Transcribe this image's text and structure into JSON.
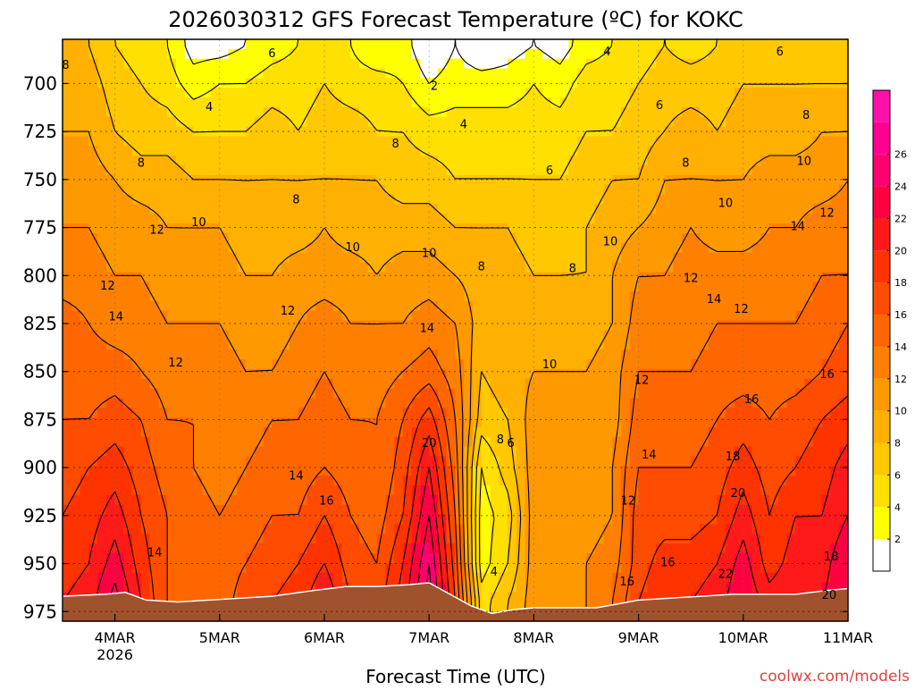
{
  "page": {
    "title": "2026030312 GFS Forecast Temperature (ºC) for KOKC"
  },
  "chart_data": {
    "type": "heatmap",
    "title": "2026030312 GFS Forecast Temperature (ºC) for KOKC",
    "xlabel": "Forecast Time (UTC)",
    "ylabel": "",
    "credit": "coolwx.com/models",
    "x_range": [
      3.5,
      11.0
    ],
    "x_ticks": [
      {
        "x": 4,
        "label": "4MAR",
        "sublabel": "2026"
      },
      {
        "x": 5,
        "label": "5MAR"
      },
      {
        "x": 6,
        "label": "6MAR"
      },
      {
        "x": 7,
        "label": "7MAR"
      },
      {
        "x": 8,
        "label": "8MAR"
      },
      {
        "x": 9,
        "label": "9MAR"
      },
      {
        "x": 10,
        "label": "10MAR"
      },
      {
        "x": 11,
        "label": "11MAR"
      }
    ],
    "y_range": [
      980,
      677
    ],
    "y_ticks": [
      700,
      725,
      750,
      775,
      800,
      825,
      850,
      875,
      900,
      925,
      950,
      975
    ],
    "colorbar": {
      "levels": [
        2,
        4,
        6,
        8,
        10,
        12,
        14,
        16,
        18,
        20,
        22,
        24,
        26
      ],
      "below_color": "#ffffff",
      "colors": [
        "#ffff00",
        "#ffe000",
        "#ffc800",
        "#ffb000",
        "#ff9900",
        "#ff8000",
        "#ff6600",
        "#ff4c00",
        "#ff3300",
        "#ff1a1a",
        "#ff0040",
        "#ff0070",
        "#ff0090",
        "#ff10a8"
      ]
    },
    "terrain_color": "#a0522d",
    "surface_pressure": [
      [
        3.5,
        967
      ],
      [
        3.9,
        966
      ],
      [
        4.1,
        965
      ],
      [
        4.3,
        969
      ],
      [
        4.6,
        970
      ],
      [
        4.9,
        969
      ],
      [
        5.2,
        968
      ],
      [
        5.5,
        967
      ],
      [
        5.9,
        964
      ],
      [
        6.2,
        962
      ],
      [
        6.5,
        962
      ],
      [
        6.8,
        961
      ],
      [
        7.0,
        960
      ],
      [
        7.2,
        966
      ],
      [
        7.4,
        972
      ],
      [
        7.6,
        976
      ],
      [
        7.8,
        974
      ],
      [
        8.0,
        973
      ],
      [
        8.3,
        973
      ],
      [
        8.6,
        973
      ],
      [
        8.8,
        971
      ],
      [
        9.0,
        969
      ],
      [
        9.3,
        968
      ],
      [
        9.6,
        967
      ],
      [
        9.9,
        966
      ],
      [
        10.2,
        966
      ],
      [
        10.5,
        966
      ],
      [
        10.8,
        964
      ],
      [
        11.0,
        963
      ]
    ],
    "temperature_profile": {
      "description": "Temperature (°C) at pressure levels (hPa) for key times",
      "levels_hpa": [
        680,
        700,
        725,
        750,
        775,
        800,
        825,
        850,
        875,
        900,
        925,
        950,
        970
      ],
      "times": [
        3.5,
        3.75,
        4.0,
        4.25,
        4.5,
        4.75,
        5.0,
        5.25,
        5.5,
        5.75,
        6.0,
        6.25,
        6.5,
        6.75,
        7.0,
        7.25,
        7.5,
        7.75,
        8.0,
        8.25,
        8.5,
        8.75,
        9.0,
        9.25,
        9.5,
        9.75,
        10.0,
        10.25,
        10.5,
        10.75,
        11.0
      ],
      "values": [
        [
          8,
          9,
          10,
          11,
          12,
          13,
          15,
          15,
          16,
          17,
          18,
          19,
          20
        ],
        [
          8,
          9,
          10,
          11,
          12,
          13,
          14,
          15,
          16,
          18,
          19,
          20,
          21
        ],
        [
          6,
          7,
          8,
          10,
          11,
          12,
          13,
          15,
          17,
          19,
          21,
          23,
          25
        ],
        [
          5,
          6,
          7,
          9,
          11,
          12,
          13,
          14,
          16,
          17,
          18,
          19,
          20
        ],
        [
          4,
          5,
          7,
          9,
          10,
          11,
          12,
          13,
          14,
          15,
          16,
          16,
          16
        ],
        [
          1,
          3,
          6,
          8,
          10,
          11,
          12,
          13,
          14,
          14,
          15,
          15,
          15
        ],
        [
          1,
          4,
          6,
          8,
          10,
          11,
          12,
          13,
          13,
          13,
          14,
          15,
          15
        ],
        [
          2,
          4,
          6,
          8,
          9,
          10,
          11,
          12,
          13,
          14,
          15,
          16,
          17
        ],
        [
          3,
          5,
          7,
          8,
          9,
          10,
          11,
          12,
          14,
          15,
          16,
          17,
          18
        ],
        [
          4,
          5,
          6,
          8,
          9,
          11,
          12,
          13,
          14,
          15,
          16,
          18,
          19
        ],
        [
          5,
          6,
          7,
          8,
          10,
          11,
          13,
          14,
          15,
          16,
          18,
          20,
          22
        ],
        [
          4,
          5,
          7,
          8,
          9,
          11,
          12,
          13,
          14,
          15,
          16,
          17,
          18
        ],
        [
          2,
          5,
          6,
          8,
          9,
          10,
          12,
          13,
          14,
          14,
          15,
          16,
          17
        ],
        [
          3,
          4,
          6,
          7,
          9,
          11,
          12,
          14,
          16,
          17,
          18,
          20,
          21
        ],
        [
          0,
          2,
          5,
          7,
          9,
          11,
          13,
          15,
          19,
          22,
          24,
          26,
          27
        ],
        [
          2,
          3,
          5,
          6,
          8,
          10,
          12,
          13,
          14,
          15,
          16,
          17,
          18
        ],
        [
          0,
          3,
          5,
          6,
          8,
          9,
          9,
          8,
          7,
          4,
          3,
          3,
          5
        ],
        [
          1,
          3,
          5,
          6,
          8,
          9,
          9,
          9,
          8,
          7,
          5,
          6,
          8
        ],
        [
          2,
          4,
          5,
          6,
          7,
          8,
          9,
          10,
          11,
          11,
          11,
          11,
          11
        ],
        [
          1,
          3,
          5,
          6,
          7,
          8,
          9,
          10,
          11,
          11,
          11,
          11,
          11
        ],
        [
          3,
          5,
          6,
          7,
          8,
          8,
          9,
          10,
          11,
          11,
          11,
          12,
          12
        ],
        [
          4,
          5,
          6,
          8,
          9,
          10,
          10,
          11,
          11,
          12,
          12,
          13,
          14
        ],
        [
          5,
          6,
          7,
          8,
          10,
          12,
          13,
          14,
          15,
          16,
          17,
          17,
          18
        ],
        [
          6,
          7,
          8,
          10,
          11,
          12,
          13,
          14,
          15,
          16,
          17,
          19,
          20
        ],
        [
          5,
          7,
          9,
          10,
          12,
          13,
          13,
          14,
          15,
          16,
          17,
          19,
          20
        ],
        [
          6,
          7,
          8,
          10,
          11,
          13,
          14,
          15,
          16,
          17,
          18,
          20,
          21
        ],
        [
          6,
          8,
          9,
          10,
          11,
          13,
          14,
          15,
          17,
          19,
          21,
          23,
          24
        ],
        [
          6,
          8,
          9,
          11,
          12,
          13,
          14,
          15,
          16,
          17,
          18,
          19,
          21
        ],
        [
          6,
          8,
          9,
          11,
          12,
          13,
          14,
          15,
          17,
          18,
          20,
          21,
          22
        ],
        [
          6,
          8,
          10,
          11,
          13,
          14,
          15,
          16,
          18,
          19,
          20,
          21,
          22
        ],
        [
          6,
          8,
          10,
          12,
          13,
          14,
          16,
          17,
          19,
          21,
          22,
          24,
          24
        ]
      ]
    },
    "contour_labels": [
      {
        "x": 3.53,
        "p": 690,
        "value": "8"
      },
      {
        "x": 5.5,
        "p": 684,
        "value": "6"
      },
      {
        "x": 4.9,
        "p": 712,
        "value": "4"
      },
      {
        "x": 7.05,
        "p": 701,
        "value": "2"
      },
      {
        "x": 7.33,
        "p": 721,
        "value": "4"
      },
      {
        "x": 8.7,
        "p": 683,
        "value": "4"
      },
      {
        "x": 9.2,
        "p": 711,
        "value": "6"
      },
      {
        "x": 10.35,
        "p": 683,
        "value": "6"
      },
      {
        "x": 10.6,
        "p": 716,
        "value": "8"
      },
      {
        "x": 4.25,
        "p": 741,
        "value": "8"
      },
      {
        "x": 6.68,
        "p": 731,
        "value": "8"
      },
      {
        "x": 8.15,
        "p": 745,
        "value": "6"
      },
      {
        "x": 9.45,
        "p": 741,
        "value": "8"
      },
      {
        "x": 10.58,
        "p": 740,
        "value": "10"
      },
      {
        "x": 5.73,
        "p": 760,
        "value": "8"
      },
      {
        "x": 4.8,
        "p": 772,
        "value": "10"
      },
      {
        "x": 4.4,
        "p": 776,
        "value": "12"
      },
      {
        "x": 6.27,
        "p": 785,
        "value": "10"
      },
      {
        "x": 7.0,
        "p": 788,
        "value": "10"
      },
      {
        "x": 7.5,
        "p": 795,
        "value": "8"
      },
      {
        "x": 8.37,
        "p": 796,
        "value": "8"
      },
      {
        "x": 8.73,
        "p": 782,
        "value": "10"
      },
      {
        "x": 9.83,
        "p": 762,
        "value": "10"
      },
      {
        "x": 10.8,
        "p": 767,
        "value": "12"
      },
      {
        "x": 10.52,
        "p": 774,
        "value": "14"
      },
      {
        "x": 3.93,
        "p": 805,
        "value": "12"
      },
      {
        "x": 4.01,
        "p": 821,
        "value": "14"
      },
      {
        "x": 5.65,
        "p": 818,
        "value": "12"
      },
      {
        "x": 9.5,
        "p": 801,
        "value": "12"
      },
      {
        "x": 9.72,
        "p": 812,
        "value": "14"
      },
      {
        "x": 9.98,
        "p": 817,
        "value": "12"
      },
      {
        "x": 4.58,
        "p": 845,
        "value": "12"
      },
      {
        "x": 6.98,
        "p": 827,
        "value": "14"
      },
      {
        "x": 8.15,
        "p": 846,
        "value": "10"
      },
      {
        "x": 9.03,
        "p": 854,
        "value": "12"
      },
      {
        "x": 10.8,
        "p": 851,
        "value": "16"
      },
      {
        "x": 10.08,
        "p": 864,
        "value": "16"
      },
      {
        "x": 7.0,
        "p": 887,
        "value": "20"
      },
      {
        "x": 7.68,
        "p": 885,
        "value": "8"
      },
      {
        "x": 7.78,
        "p": 887,
        "value": "6"
      },
      {
        "x": 9.1,
        "p": 893,
        "value": "14"
      },
      {
        "x": 9.9,
        "p": 894,
        "value": "18"
      },
      {
        "x": 5.73,
        "p": 904,
        "value": "14"
      },
      {
        "x": 6.02,
        "p": 917,
        "value": "16"
      },
      {
        "x": 8.9,
        "p": 917,
        "value": "12"
      },
      {
        "x": 9.95,
        "p": 913,
        "value": "20"
      },
      {
        "x": 4.38,
        "p": 944,
        "value": "14"
      },
      {
        "x": 9.28,
        "p": 949,
        "value": "16"
      },
      {
        "x": 7.62,
        "p": 954,
        "value": "4"
      },
      {
        "x": 9.83,
        "p": 955,
        "value": "22"
      },
      {
        "x": 10.84,
        "p": 946,
        "value": "18"
      },
      {
        "x": 8.89,
        "p": 959,
        "value": "16"
      },
      {
        "x": 10.82,
        "p": 966,
        "value": "20"
      }
    ]
  }
}
